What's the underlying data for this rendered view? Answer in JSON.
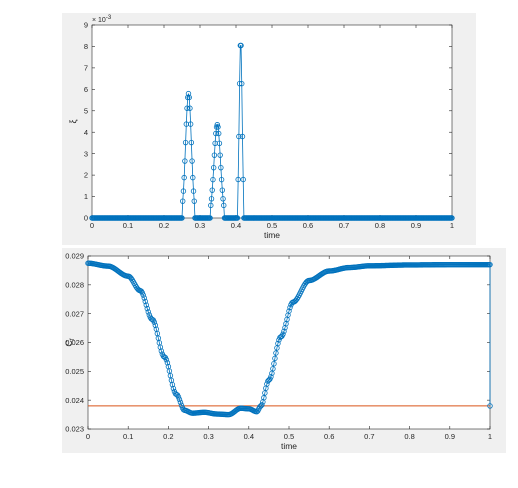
{
  "chart_data": [
    {
      "type": "line",
      "xlabel": "time",
      "ylabel": "ξ",
      "exponent_base": "× 10",
      "exponent_power": "-3",
      "xlim": [
        0,
        1
      ],
      "ylim": [
        0,
        9
      ],
      "x_ticks": [
        "0",
        "0.1",
        "0.2",
        "0.3",
        "0.4",
        "0.5",
        "0.6",
        "0.7",
        "0.8",
        "0.9",
        "1"
      ],
      "y_ticks": [
        "0",
        "1",
        "2",
        "3",
        "4",
        "5",
        "6",
        "7",
        "8",
        "9"
      ],
      "y_scale": 0.001,
      "marker": "circle",
      "series_color": "#0072bd",
      "peaks": [
        {
          "x": 0.268,
          "y": 5.8
        },
        {
          "x": 0.348,
          "y": 4.35
        },
        {
          "x": 0.413,
          "y": 8.3
        }
      ],
      "grid": false
    },
    {
      "type": "line",
      "xlabel": "time",
      "ylabel": "C_f",
      "ylabel_main": "C",
      "ylabel_sub": "f",
      "xlim": [
        0,
        1
      ],
      "ylim": [
        0.023,
        0.029
      ],
      "x_ticks": [
        "0",
        "0.1",
        "0.2",
        "0.3",
        "0.4",
        "0.5",
        "0.6",
        "0.7",
        "0.8",
        "0.9",
        "1"
      ],
      "y_ticks": [
        "0.023",
        "0.024",
        "0.025",
        "0.026",
        "0.027",
        "0.028",
        "0.029"
      ],
      "marker": "circle",
      "series_color": "#0072bd",
      "reference_line": {
        "y": 0.0238,
        "color": "#d95319"
      },
      "curve_points": [
        [
          0,
          0.02875
        ],
        [
          0.05,
          0.02865
        ],
        [
          0.1,
          0.0283
        ],
        [
          0.13,
          0.0278
        ],
        [
          0.16,
          0.0268
        ],
        [
          0.19,
          0.0255
        ],
        [
          0.22,
          0.0242
        ],
        [
          0.24,
          0.02365
        ],
        [
          0.26,
          0.02355
        ],
        [
          0.29,
          0.02358
        ],
        [
          0.32,
          0.02352
        ],
        [
          0.35,
          0.0235
        ],
        [
          0.38,
          0.02372
        ],
        [
          0.4,
          0.0237
        ],
        [
          0.42,
          0.0236
        ],
        [
          0.43,
          0.0238
        ],
        [
          0.45,
          0.0247
        ],
        [
          0.48,
          0.0262
        ],
        [
          0.51,
          0.0274
        ],
        [
          0.55,
          0.02815
        ],
        [
          0.6,
          0.02848
        ],
        [
          0.65,
          0.0286
        ],
        [
          0.7,
          0.02866
        ],
        [
          0.8,
          0.02869
        ],
        [
          0.9,
          0.0287
        ],
        [
          1,
          0.0287
        ]
      ],
      "end_point": {
        "x": 1,
        "y": 0.0238
      },
      "grid": false
    }
  ]
}
